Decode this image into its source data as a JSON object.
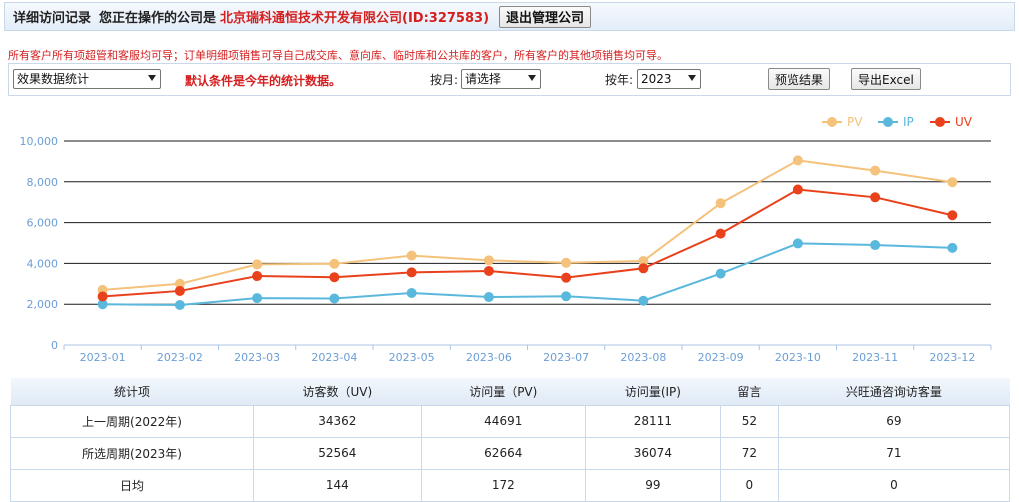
{
  "header": {
    "title": "详细访问记录",
    "operating_label": "您正在操作的公司是",
    "company": "北京瑞科通恒技术开发有限公司(ID:327583)",
    "exit_button": "退出管理公司"
  },
  "notice": "所有客户所有项超管和客服均可导；订单明细项销售可导自己成交库、意向库、临时库和公共库的客户，所有客户的其他项销售均可导。",
  "filters": {
    "type_select": "效果数据统计",
    "default_hint": "默认条件是今年的统计数据。",
    "month_label": "按月:",
    "month_select": "请选择",
    "year_label": "按年:",
    "year_select": "2023",
    "preview_button": "预览结果",
    "export_button": "导出Excel"
  },
  "chart_data": {
    "type": "line",
    "categories": [
      "2023-01",
      "2023-02",
      "2023-03",
      "2023-04",
      "2023-05",
      "2023-06",
      "2023-07",
      "2023-08",
      "2023-09",
      "2023-10",
      "2023-11",
      "2023-12"
    ],
    "y_ticks": [
      "0",
      "2,000",
      "4,000",
      "6,000",
      "8,000",
      "10,000"
    ],
    "ylim": [
      0,
      10000
    ],
    "legend_position": "top-right",
    "series": [
      {
        "name": "PV",
        "color": "#f4c27a",
        "values": [
          2700,
          3000,
          3950,
          3980,
          4380,
          4150,
          4030,
          4120,
          6950,
          9050,
          8550,
          7980
        ]
      },
      {
        "name": "IP",
        "color": "#5bb8dd",
        "values": [
          2000,
          1960,
          2300,
          2280,
          2550,
          2350,
          2390,
          2170,
          3500,
          4980,
          4900,
          4760
        ]
      },
      {
        "name": "UV",
        "color": "#e8411b",
        "values": [
          2380,
          2650,
          3380,
          3320,
          3560,
          3630,
          3300,
          3760,
          5460,
          7620,
          7240,
          6360
        ]
      }
    ]
  },
  "table": {
    "headers": [
      "统计项",
      "访客数（UV)",
      "访问量（PV)",
      "访问量(IP)",
      "留言",
      "兴旺通咨询访客量"
    ],
    "rows": [
      [
        "上一周期(2022年)",
        "34362",
        "44691",
        "28111",
        "52",
        "69"
      ],
      [
        "所选周期(2023年)",
        "52564",
        "62664",
        "36074",
        "72",
        "71"
      ],
      [
        "日均",
        "144",
        "172",
        "99",
        "0",
        "0"
      ]
    ]
  }
}
